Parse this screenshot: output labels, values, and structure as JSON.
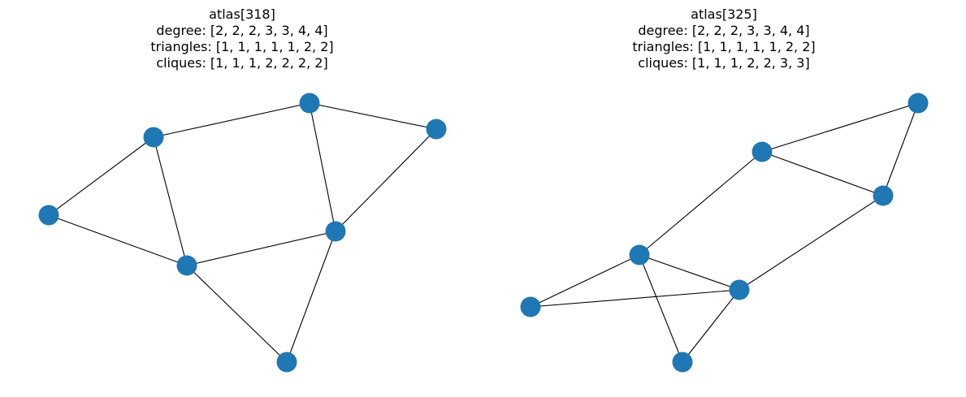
{
  "node_color": "#1f77b4",
  "edge_color": "#000000",
  "graphs": [
    {
      "title": "atlas[318]",
      "degree": "degree: [2, 2, 2, 3, 3, 4, 4]",
      "triangles": "triangles: [1, 1, 1, 1, 1, 2, 2]",
      "cliques": "cliques: [1, 1, 1, 2, 2, 2, 2]",
      "nodes": [
        "A",
        "B",
        "C",
        "D",
        "E",
        "F",
        "G"
      ],
      "edges": [
        [
          "C",
          "A"
        ],
        [
          "A",
          "B"
        ],
        [
          "A",
          "E"
        ],
        [
          "B",
          "E"
        ],
        [
          "C",
          "D"
        ],
        [
          "C",
          "F"
        ],
        [
          "D",
          "F"
        ],
        [
          "F",
          "E"
        ],
        [
          "F",
          "G"
        ],
        [
          "E",
          "G"
        ]
      ]
    },
    {
      "title": "atlas[325]",
      "degree": "degree: [2, 2, 2, 3, 3, 4, 4]",
      "triangles": "triangles: [1, 1, 1, 1, 1, 2, 2]",
      "cliques": "cliques: [1, 1, 1, 2, 2, 3, 3]",
      "nodes": [
        "H",
        "I",
        "J",
        "K",
        "L",
        "M",
        "N"
      ],
      "edges": [
        [
          "I",
          "H"
        ],
        [
          "H",
          "J"
        ],
        [
          "I",
          "J"
        ],
        [
          "I",
          "K"
        ],
        [
          "J",
          "L"
        ],
        [
          "K",
          "L"
        ],
        [
          "K",
          "M"
        ],
        [
          "M",
          "L"
        ],
        [
          "K",
          "N"
        ],
        [
          "L",
          "N"
        ]
      ]
    }
  ]
}
